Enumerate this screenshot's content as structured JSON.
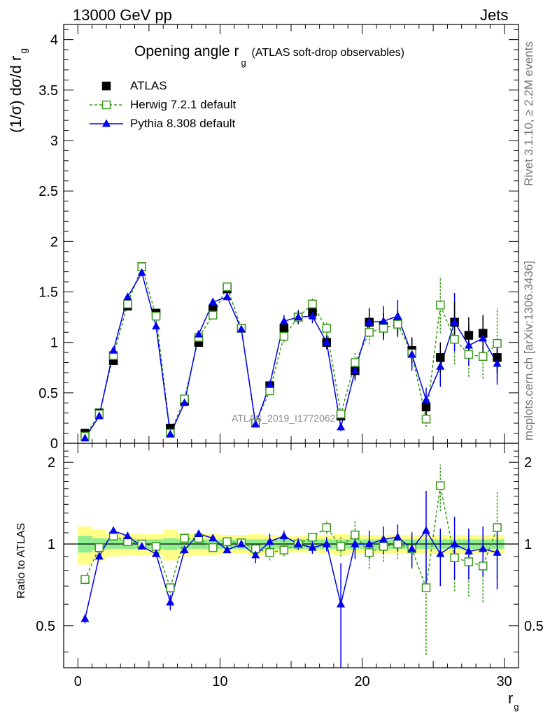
{
  "header": {
    "energy": "13000 GeV pp",
    "category": "Jets"
  },
  "side_labels": {
    "rivet": "Rivet 3.1.10, ≥ 2.2M events",
    "mcplots": "mcplots.cern.ch [arXiv:1306.3436]"
  },
  "watermark": "ATLAS_2019_I1772062",
  "chart_data": {
    "type": "scatter",
    "title_main": "Opening angle r",
    "title_sub": "g",
    "title_rest": "(ATLAS soft-drop observables)",
    "ylabel": "(1/σ) dσ/d r",
    "ylabel_sub": "g",
    "xlabel": "r",
    "xlabel_sub": "g",
    "ratio_ylabel": "Ratio to ATLAS",
    "xlim": [
      -1,
      31
    ],
    "ylim": [
      0,
      4.15
    ],
    "ratio_ylim": [
      0.35,
      2.35
    ],
    "x_ticks": [
      0,
      10,
      20,
      30
    ],
    "y_ticks": [
      0,
      0.5,
      1,
      1.5,
      2,
      2.5,
      3,
      3.5,
      4
    ],
    "y_tick_labels": [
      "0",
      "0.5",
      "1",
      "1.5",
      "2",
      "2.5",
      "3",
      "3.5",
      "4"
    ],
    "ratio_ticks": [
      0.5,
      1,
      2
    ],
    "ratio_tick_labels": [
      "0.5",
      "1",
      "2"
    ],
    "legend": [
      "ATLAS",
      "Herwig 7.2.1 default",
      "Pythia 8.308 default"
    ],
    "x": [
      0.5,
      1.5,
      2.5,
      3.5,
      4.5,
      5.5,
      6.5,
      7.5,
      8.5,
      9.5,
      10.5,
      11.5,
      12.5,
      13.5,
      14.5,
      15.5,
      16.5,
      17.5,
      18.5,
      19.5,
      20.5,
      21.5,
      22.5,
      23.5,
      24.5,
      25.5,
      26.5,
      27.5,
      28.5,
      29.5
    ],
    "atlas": [
      0.1,
      0.3,
      0.82,
      1.36,
      1.75,
      1.29,
      0.15,
      0.42,
      1.0,
      1.33,
      1.53,
      1.14,
      0.2,
      0.57,
      1.14,
      1.25,
      1.3,
      1.0,
      0.27,
      0.72,
      1.2,
      1.16,
      1.19,
      0.92,
      0.36,
      0.85,
      1.2,
      1.07,
      1.09,
      0.85
    ],
    "atlas_err": [
      0.01,
      0.02,
      0.03,
      0.03,
      0.03,
      0.03,
      0.01,
      0.02,
      0.03,
      0.03,
      0.03,
      0.03,
      0.02,
      0.04,
      0.06,
      0.06,
      0.06,
      0.06,
      0.04,
      0.08,
      0.13,
      0.13,
      0.13,
      0.13,
      0.08,
      0.15,
      0.2,
      0.18,
      0.18,
      0.15
    ],
    "herwig": [
      0.07,
      0.29,
      0.87,
      1.38,
      1.75,
      1.26,
      0.1,
      0.44,
      1.05,
      1.27,
      1.55,
      1.14,
      0.2,
      0.52,
      1.06,
      1.25,
      1.38,
      1.14,
      0.29,
      0.8,
      1.1,
      1.14,
      1.18,
      0.89,
      0.24,
      1.37,
      1.03,
      0.88,
      0.86,
      0.99
    ],
    "herwig_err": [
      0.01,
      0.02,
      0.03,
      0.03,
      0.03,
      0.03,
      0.01,
      0.02,
      0.03,
      0.03,
      0.03,
      0.03,
      0.02,
      0.04,
      0.06,
      0.07,
      0.07,
      0.07,
      0.04,
      0.1,
      0.12,
      0.12,
      0.13,
      0.13,
      0.08,
      0.28,
      0.25,
      0.22,
      0.22,
      0.35
    ],
    "pythia": [
      0.05,
      0.27,
      0.92,
      1.45,
      1.69,
      1.16,
      0.09,
      0.4,
      1.08,
      1.4,
      1.45,
      1.13,
      0.19,
      0.58,
      1.21,
      1.25,
      1.26,
      1.0,
      0.16,
      0.72,
      1.2,
      1.21,
      1.26,
      0.88,
      0.43,
      0.76,
      1.2,
      0.97,
      1.04,
      0.79
    ],
    "pythia_err": [
      0.01,
      0.02,
      0.03,
      0.03,
      0.03,
      0.03,
      0.01,
      0.02,
      0.03,
      0.03,
      0.03,
      0.03,
      0.02,
      0.04,
      0.06,
      0.07,
      0.07,
      0.07,
      0.04,
      0.1,
      0.14,
      0.15,
      0.16,
      0.16,
      0.12,
      0.2,
      0.29,
      0.2,
      0.2,
      0.21
    ],
    "ratio_herwig": [
      0.74,
      0.97,
      1.07,
      1.02,
      1.0,
      0.98,
      0.69,
      1.05,
      1.05,
      0.97,
      1.02,
      1.01,
      0.96,
      0.93,
      0.95,
      1.0,
      1.06,
      1.15,
      0.98,
      1.08,
      0.93,
      0.98,
      1.0,
      0.96,
      0.69,
      1.64,
      0.89,
      0.86,
      0.83,
      1.15
    ],
    "ratio_herwig_err": [
      0.03,
      0.02,
      0.02,
      0.02,
      0.02,
      0.02,
      0.03,
      0.03,
      0.02,
      0.02,
      0.02,
      0.02,
      0.05,
      0.06,
      0.05,
      0.04,
      0.04,
      0.06,
      0.08,
      0.14,
      0.12,
      0.12,
      0.12,
      0.15,
      0.3,
      0.32,
      0.22,
      0.22,
      0.22,
      0.4
    ],
    "ratio_pythia": [
      0.53,
      0.9,
      1.12,
      1.07,
      0.98,
      0.92,
      0.61,
      0.95,
      1.09,
      1.05,
      0.95,
      1.0,
      0.91,
      1.02,
      1.07,
      1.0,
      0.97,
      1.0,
      0.6,
      1.0,
      1.0,
      1.04,
      1.06,
      0.96,
      1.12,
      0.92,
      1.0,
      0.94,
      0.96,
      0.93
    ],
    "ratio_pythia_err": [
      0.02,
      0.02,
      0.02,
      0.02,
      0.02,
      0.02,
      0.04,
      0.03,
      0.02,
      0.02,
      0.02,
      0.02,
      0.06,
      0.07,
      0.05,
      0.05,
      0.05,
      0.06,
      0.25,
      0.12,
      0.12,
      0.12,
      0.12,
      0.14,
      0.45,
      0.22,
      0.26,
      0.2,
      0.2,
      0.25
    ],
    "band_inner": [
      0.07,
      0.05,
      0.04,
      0.04,
      0.04,
      0.04,
      0.05,
      0.04,
      0.04,
      0.04,
      0.04,
      0.04,
      0.04,
      0.04,
      0.04,
      0.04,
      0.04,
      0.04,
      0.04,
      0.04,
      0.04,
      0.04,
      0.04,
      0.04,
      0.04,
      0.04,
      0.04,
      0.04,
      0.04,
      0.04
    ],
    "band_outer": [
      0.16,
      0.13,
      0.1,
      0.09,
      0.09,
      0.09,
      0.13,
      0.1,
      0.09,
      0.09,
      0.08,
      0.08,
      0.09,
      0.08,
      0.07,
      0.07,
      0.07,
      0.08,
      0.09,
      0.08,
      0.08,
      0.08,
      0.08,
      0.08,
      0.08,
      0.08,
      0.08,
      0.08,
      0.08,
      0.08
    ]
  },
  "colors": {
    "atlas": "#000000",
    "herwig": "#3a9a1a",
    "pythia": "#0000ee",
    "band_inner": "#90ee90",
    "band_outer": "#ffff88"
  }
}
